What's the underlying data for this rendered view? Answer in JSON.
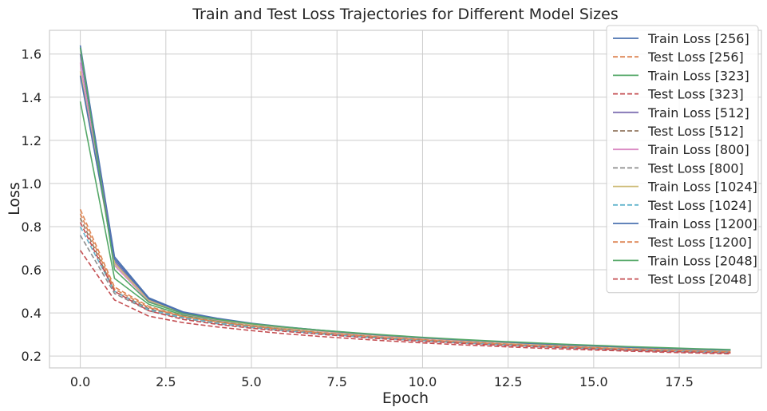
{
  "chart_data": {
    "type": "line",
    "title": "Train and Test Loss Trajectories for Different Model Sizes",
    "xlabel": "Epoch",
    "ylabel": "Loss",
    "xlim": [
      -0.9,
      19.9
    ],
    "ylim": [
      0.145,
      1.71
    ],
    "xticks": [
      0.0,
      2.5,
      5.0,
      7.5,
      10.0,
      12.5,
      15.0,
      17.5
    ],
    "xtick_labels": [
      "0.0",
      "2.5",
      "5.0",
      "7.5",
      "10.0",
      "12.5",
      "15.0",
      "17.5"
    ],
    "yticks": [
      0.2,
      0.4,
      0.6,
      0.8,
      1.0,
      1.2,
      1.4,
      1.6
    ],
    "ytick_labels": [
      "0.2",
      "0.4",
      "0.6",
      "0.8",
      "1.0",
      "1.2",
      "1.4",
      "1.6"
    ],
    "grid": true,
    "legend_position": "top-right",
    "x": [
      0,
      1,
      2,
      3,
      4,
      5,
      6,
      7,
      8,
      9,
      10,
      11,
      12,
      13,
      14,
      15,
      16,
      17,
      18,
      19
    ],
    "series": [
      {
        "name": "Train Loss [256]",
        "color": "#4c72b0",
        "dash": "solid",
        "values": [
          1.64,
          0.66,
          0.47,
          0.405,
          0.375,
          0.352,
          0.335,
          0.32,
          0.307,
          0.295,
          0.285,
          0.276,
          0.268,
          0.26,
          0.253,
          0.247,
          0.241,
          0.236,
          0.231,
          0.227
        ]
      },
      {
        "name": "Test Loss [256]",
        "color": "#dd8452",
        "dash": "dashed",
        "values": [
          0.88,
          0.52,
          0.43,
          0.385,
          0.36,
          0.34,
          0.323,
          0.309,
          0.297,
          0.286,
          0.276,
          0.267,
          0.259,
          0.252,
          0.245,
          0.239,
          0.233,
          0.228,
          0.224,
          0.22
        ]
      },
      {
        "name": "Train Loss [323]",
        "color": "#55a868",
        "dash": "solid",
        "values": [
          1.38,
          0.56,
          0.44,
          0.39,
          0.365,
          0.345,
          0.329,
          0.316,
          0.304,
          0.293,
          0.284,
          0.275,
          0.267,
          0.26,
          0.253,
          0.247,
          0.241,
          0.236,
          0.232,
          0.228
        ]
      },
      {
        "name": "Test Loss [323]",
        "color": "#c44e52",
        "dash": "dashed",
        "values": [
          0.69,
          0.46,
          0.385,
          0.355,
          0.335,
          0.318,
          0.303,
          0.291,
          0.28,
          0.27,
          0.261,
          0.253,
          0.246,
          0.239,
          0.233,
          0.228,
          0.223,
          0.218,
          0.214,
          0.21
        ]
      },
      {
        "name": "Train Loss [512]",
        "color": "#8172b3",
        "dash": "solid",
        "values": [
          1.6,
          0.64,
          0.46,
          0.4,
          0.37,
          0.348,
          0.332,
          0.318,
          0.305,
          0.294,
          0.284,
          0.275,
          0.267,
          0.259,
          0.252,
          0.246,
          0.24,
          0.235,
          0.23,
          0.226
        ]
      },
      {
        "name": "Test Loss [512]",
        "color": "#937860",
        "dash": "dashed",
        "values": [
          0.84,
          0.5,
          0.42,
          0.38,
          0.355,
          0.336,
          0.32,
          0.306,
          0.294,
          0.283,
          0.273,
          0.264,
          0.256,
          0.249,
          0.242,
          0.236,
          0.23,
          0.225,
          0.221,
          0.217
        ]
      },
      {
        "name": "Train Loss [800]",
        "color": "#da8bc3",
        "dash": "solid",
        "values": [
          1.56,
          0.62,
          0.455,
          0.395,
          0.367,
          0.346,
          0.33,
          0.316,
          0.303,
          0.292,
          0.282,
          0.273,
          0.265,
          0.258,
          0.251,
          0.245,
          0.239,
          0.234,
          0.229,
          0.225
        ]
      },
      {
        "name": "Test Loss [800]",
        "color": "#8c8c8c",
        "dash": "dashed",
        "values": [
          0.76,
          0.49,
          0.41,
          0.375,
          0.35,
          0.332,
          0.317,
          0.303,
          0.291,
          0.28,
          0.27,
          0.262,
          0.254,
          0.247,
          0.24,
          0.234,
          0.229,
          0.224,
          0.22,
          0.216
        ]
      },
      {
        "name": "Train Loss [1024]",
        "color": "#ccb974",
        "dash": "solid",
        "values": [
          1.52,
          0.63,
          0.46,
          0.398,
          0.369,
          0.347,
          0.331,
          0.317,
          0.304,
          0.293,
          0.283,
          0.274,
          0.266,
          0.258,
          0.251,
          0.245,
          0.239,
          0.234,
          0.23,
          0.226
        ]
      },
      {
        "name": "Test Loss [1024]",
        "color": "#64b5cd",
        "dash": "dashed",
        "values": [
          0.8,
          0.5,
          0.415,
          0.378,
          0.353,
          0.334,
          0.318,
          0.304,
          0.292,
          0.281,
          0.271,
          0.263,
          0.255,
          0.248,
          0.241,
          0.235,
          0.23,
          0.225,
          0.221,
          0.217
        ]
      },
      {
        "name": "Train Loss [1200]",
        "color": "#4c72b0",
        "dash": "solid",
        "values": [
          1.5,
          0.65,
          0.465,
          0.402,
          0.372,
          0.35,
          0.334,
          0.319,
          0.306,
          0.295,
          0.285,
          0.276,
          0.268,
          0.26,
          0.253,
          0.247,
          0.241,
          0.236,
          0.231,
          0.228
        ]
      },
      {
        "name": "Test Loss [1200]",
        "color": "#dd8452",
        "dash": "dashed",
        "values": [
          0.86,
          0.51,
          0.425,
          0.383,
          0.358,
          0.338,
          0.322,
          0.308,
          0.296,
          0.285,
          0.275,
          0.266,
          0.258,
          0.251,
          0.244,
          0.238,
          0.232,
          0.227,
          0.223,
          0.219
        ]
      },
      {
        "name": "Train Loss [2048]",
        "color": "#55a868",
        "dash": "solid",
        "values": [
          1.63,
          0.6,
          0.45,
          0.397,
          0.37,
          0.35,
          0.334,
          0.32,
          0.308,
          0.297,
          0.287,
          0.278,
          0.27,
          0.263,
          0.256,
          0.25,
          0.244,
          0.239,
          0.234,
          0.23
        ]
      },
      {
        "name": "Test Loss [2048]",
        "color": "#c44e52",
        "dash": "dashed",
        "values": [
          0.82,
          0.5,
          0.41,
          0.37,
          0.347,
          0.329,
          0.314,
          0.301,
          0.289,
          0.278,
          0.268,
          0.26,
          0.252,
          0.245,
          0.239,
          0.233,
          0.227,
          0.222,
          0.218,
          0.214
        ]
      }
    ]
  }
}
